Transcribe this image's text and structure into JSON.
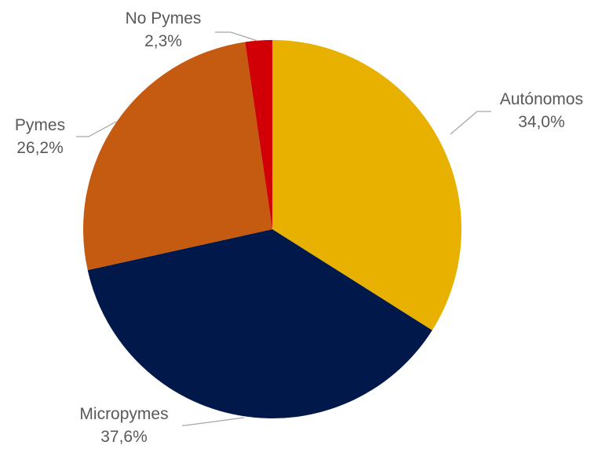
{
  "chart_data": {
    "type": "pie",
    "title": "",
    "legend": "none",
    "slices": [
      {
        "name": "Autónomos",
        "value": 34.0,
        "label": "34,0%",
        "color": "#e8b100"
      },
      {
        "name": "Micropymes",
        "value": 37.6,
        "label": "37,6%",
        "color": "#00184a"
      },
      {
        "name": "Pymes",
        "value": 26.2,
        "label": "26,2%",
        "color": "#c55a11"
      },
      {
        "name": "No Pymes",
        "value": 2.3,
        "label": "2,3%",
        "color": "#d10007"
      }
    ]
  }
}
